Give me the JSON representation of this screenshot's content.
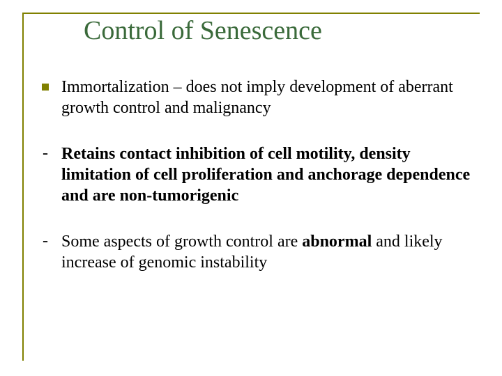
{
  "slide": {
    "title": "Control of Senescence",
    "title_color": "#3a6a3a",
    "title_fontsize": 38,
    "frame_color": "#808000",
    "background_color": "#ffffff",
    "body_fontsize": 24,
    "body_color": "#000000",
    "bullets": [
      {
        "marker": "square",
        "marker_color": "#808000",
        "runs": [
          {
            "text": "Immortalization – does not imply development of aberrant growth control and malignancy",
            "bold": false
          }
        ]
      },
      {
        "marker": "dash",
        "runs": [
          {
            "text": "Retains contact inhibition of cell motility, density limitation of cell proliferation and anchorage dependence and are non-tumorigenic",
            "bold": true
          }
        ]
      },
      {
        "marker": "dash",
        "runs": [
          {
            "text": "Some aspects of growth control are ",
            "bold": false
          },
          {
            "text": "abnormal",
            "bold": true
          },
          {
            "text": " and likely increase of genomic instability",
            "bold": false
          }
        ]
      }
    ]
  }
}
